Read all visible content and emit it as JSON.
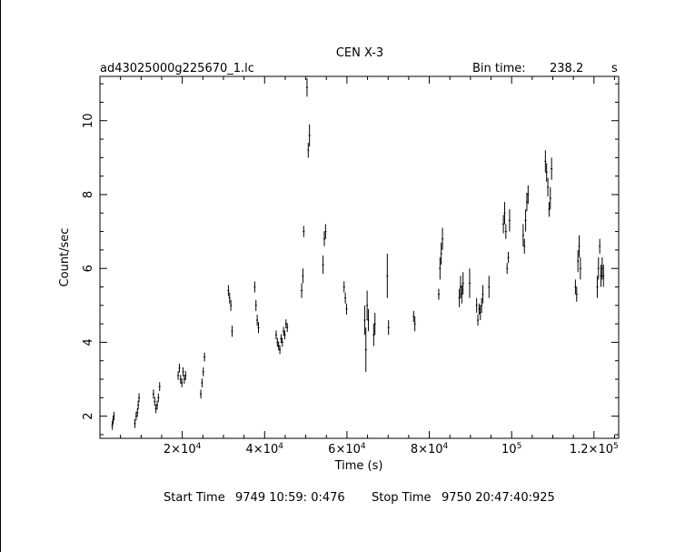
{
  "chart_data": {
    "type": "scatter",
    "title": "CEN X-3",
    "filename": "ad43025000g225670_1.lc",
    "bin_time_label": "Bin time:",
    "bin_time_value": "238.2",
    "bin_time_unit": "s",
    "xlabel": "Time (s)",
    "ylabel": "Count/sec",
    "xlim": [
      0,
      126000
    ],
    "ylim": [
      1.4,
      11.2
    ],
    "x_ticks": [
      {
        "value": 20000,
        "mant": "2",
        "exp": "4"
      },
      {
        "value": 40000,
        "mant": "4",
        "exp": "4"
      },
      {
        "value": 60000,
        "mant": "6",
        "exp": "4"
      },
      {
        "value": 80000,
        "mant": "8",
        "exp": "4"
      },
      {
        "value": 100000,
        "mant": "10",
        "exp": "5",
        "short": true
      },
      {
        "value": 120000,
        "mant": "1.2",
        "exp": "5"
      }
    ],
    "y_ticks": [
      2,
      4,
      6,
      8,
      10
    ],
    "grid": false,
    "series": [
      {
        "points": [
          [
            3000,
            1.75,
            0.12
          ],
          [
            3200,
            1.9,
            0.12
          ],
          [
            3400,
            2.0,
            0.12
          ],
          [
            8500,
            1.8,
            0.12
          ],
          [
            8800,
            2.0,
            0.12
          ],
          [
            9100,
            2.1,
            0.12
          ],
          [
            9300,
            2.3,
            0.12
          ],
          [
            9500,
            2.5,
            0.12
          ],
          [
            13000,
            2.6,
            0.12
          ],
          [
            13300,
            2.4,
            0.12
          ],
          [
            13600,
            2.2,
            0.12
          ],
          [
            13900,
            2.3,
            0.12
          ],
          [
            14200,
            2.5,
            0.12
          ],
          [
            14500,
            2.8,
            0.12
          ],
          [
            19000,
            3.1,
            0.12
          ],
          [
            19300,
            3.3,
            0.12
          ],
          [
            19600,
            3.0,
            0.12
          ],
          [
            19900,
            2.9,
            0.12
          ],
          [
            20200,
            3.2,
            0.12
          ],
          [
            20500,
            3.0,
            0.12
          ],
          [
            20800,
            3.1,
            0.12
          ],
          [
            24500,
            2.6,
            0.12
          ],
          [
            24800,
            2.9,
            0.12
          ],
          [
            25100,
            3.2,
            0.12
          ],
          [
            25400,
            3.6,
            0.12
          ],
          [
            31200,
            5.4,
            0.15
          ],
          [
            31500,
            5.2,
            0.15
          ],
          [
            31800,
            5.0,
            0.15
          ],
          [
            32100,
            4.3,
            0.15
          ],
          [
            37600,
            5.5,
            0.15
          ],
          [
            37900,
            5.0,
            0.15
          ],
          [
            38200,
            4.6,
            0.15
          ],
          [
            38500,
            4.4,
            0.15
          ],
          [
            42800,
            4.2,
            0.12
          ],
          [
            43100,
            4.0,
            0.12
          ],
          [
            43400,
            3.9,
            0.12
          ],
          [
            43700,
            3.8,
            0.12
          ],
          [
            44000,
            4.1,
            0.12
          ],
          [
            44300,
            4.0,
            0.12
          ],
          [
            44600,
            4.3,
            0.12
          ],
          [
            44900,
            4.2,
            0.12
          ],
          [
            45200,
            4.5,
            0.12
          ],
          [
            45500,
            4.4,
            0.12
          ],
          [
            49000,
            5.4,
            0.2
          ],
          [
            49300,
            5.8,
            0.2
          ],
          [
            49500,
            7.0,
            0.15
          ],
          [
            50300,
            10.9,
            0.25
          ],
          [
            50600,
            9.2,
            0.2
          ],
          [
            50900,
            9.6,
            0.3
          ],
          [
            54200,
            6.1,
            0.25
          ],
          [
            54500,
            6.8,
            0.2
          ],
          [
            54800,
            7.0,
            0.2
          ],
          [
            59300,
            5.5,
            0.15
          ],
          [
            59600,
            5.2,
            0.15
          ],
          [
            59900,
            4.9,
            0.15
          ],
          [
            64300,
            4.6,
            0.4
          ],
          [
            64600,
            3.8,
            0.6
          ],
          [
            64900,
            5.0,
            0.4
          ],
          [
            65200,
            4.6,
            0.3
          ],
          [
            66500,
            4.2,
            0.3
          ],
          [
            66800,
            4.5,
            0.3
          ],
          [
            69800,
            5.8,
            0.6
          ],
          [
            70100,
            4.4,
            0.2
          ],
          [
            76200,
            4.7,
            0.15
          ],
          [
            76500,
            4.5,
            0.2
          ],
          [
            82300,
            5.3,
            0.15
          ],
          [
            82600,
            6.0,
            0.3
          ],
          [
            82900,
            6.4,
            0.3
          ],
          [
            83200,
            6.8,
            0.3
          ],
          [
            87300,
            5.2,
            0.25
          ],
          [
            87600,
            5.5,
            0.3
          ],
          [
            87900,
            5.3,
            0.25
          ],
          [
            88200,
            5.6,
            0.3
          ],
          [
            89800,
            5.6,
            0.4
          ],
          [
            91500,
            5.0,
            0.2
          ],
          [
            91800,
            4.6,
            0.15
          ],
          [
            92100,
            4.9,
            0.15
          ],
          [
            92400,
            4.8,
            0.2
          ],
          [
            92700,
            5.0,
            0.2
          ],
          [
            93000,
            5.3,
            0.25
          ],
          [
            94500,
            5.5,
            0.3
          ],
          [
            98000,
            7.2,
            0.25
          ],
          [
            98300,
            7.5,
            0.3
          ],
          [
            98600,
            7.0,
            0.2
          ],
          [
            98900,
            6.0,
            0.15
          ],
          [
            99200,
            6.3,
            0.15
          ],
          [
            99500,
            7.3,
            0.3
          ],
          [
            102800,
            6.9,
            0.3
          ],
          [
            103100,
            6.6,
            0.2
          ],
          [
            103400,
            7.3,
            0.3
          ],
          [
            103700,
            7.8,
            0.25
          ],
          [
            104000,
            8.0,
            0.25
          ],
          [
            108200,
            8.9,
            0.3
          ],
          [
            108500,
            8.6,
            0.25
          ],
          [
            108800,
            8.2,
            0.25
          ],
          [
            109100,
            7.6,
            0.2
          ],
          [
            109400,
            7.9,
            0.3
          ],
          [
            109700,
            8.7,
            0.3
          ],
          [
            115500,
            5.5,
            0.2
          ],
          [
            115800,
            5.3,
            0.2
          ],
          [
            116100,
            6.2,
            0.3
          ],
          [
            116400,
            6.6,
            0.3
          ],
          [
            116700,
            6.0,
            0.3
          ],
          [
            120800,
            5.5,
            0.3
          ],
          [
            121100,
            6.0,
            0.3
          ],
          [
            121400,
            6.6,
            0.2
          ],
          [
            121700,
            5.8,
            0.3
          ],
          [
            122000,
            6.0,
            0.3
          ],
          [
            122300,
            5.8,
            0.3
          ]
        ]
      }
    ]
  },
  "footer": {
    "start_label": "Start Time",
    "start_value": "9749 10:59: 0:476",
    "stop_label": "Stop Time",
    "stop_value": "9750 20:47:40:925"
  }
}
